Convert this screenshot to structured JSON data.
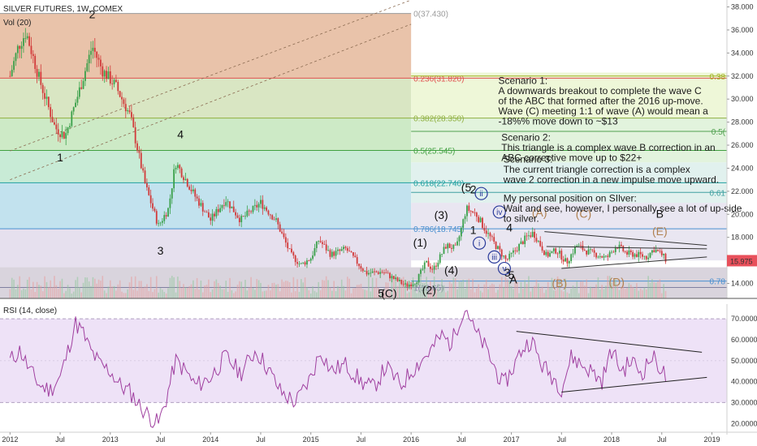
{
  "header": {
    "symbol": "SILVER FUTURES, 1W, COMEX",
    "vol_label": "Vol (20)",
    "rsi_label": "RSI (14, close)"
  },
  "colors": {
    "candle_up": "#3aa04a",
    "candle_down": "#d23a3a",
    "rsi_line": "#a040a0",
    "rsi_band": "#eee2f7",
    "price_badge": "#e8505b"
  },
  "chart_data": [
    {
      "type": "candlestick",
      "title": "SILVER FUTURES, 1W, COMEX",
      "x_ticks": [
        "2012",
        "Jul",
        "2013",
        "Jul",
        "2014",
        "Jul",
        "2015",
        "Jul",
        "2016",
        "Jul",
        "2017",
        "Jul",
        "2018",
        "Jul",
        "2019"
      ],
      "y_ticks": [
        "38.000",
        "36.000",
        "34.000",
        "32.000",
        "30.000",
        "28.000",
        "26.000",
        "24.000",
        "22.000",
        "20.000",
        "18.000",
        "16.000",
        "14.000"
      ],
      "ylim": [
        12.7,
        38.6
      ],
      "last_price": "15.975",
      "price_anchors": [
        {
          "t": 2012.0,
          "v": 32.0
        },
        {
          "t": 2012.08,
          "v": 34.5
        },
        {
          "t": 2012.16,
          "v": 35.8
        },
        {
          "t": 2012.3,
          "v": 31.5
        },
        {
          "t": 2012.45,
          "v": 27.5
        },
        {
          "t": 2012.55,
          "v": 26.8
        },
        {
          "t": 2012.7,
          "v": 31.0
        },
        {
          "t": 2012.82,
          "v": 34.6
        },
        {
          "t": 2012.92,
          "v": 32.5
        },
        {
          "t": 2013.05,
          "v": 31.2
        },
        {
          "t": 2013.2,
          "v": 28.5
        },
        {
          "t": 2013.35,
          "v": 22.5
        },
        {
          "t": 2013.48,
          "v": 19.0
        },
        {
          "t": 2013.58,
          "v": 20.5
        },
        {
          "t": 2013.65,
          "v": 24.5
        },
        {
          "t": 2013.72,
          "v": 23.5
        },
        {
          "t": 2013.85,
          "v": 21.5
        },
        {
          "t": 2014.0,
          "v": 19.5
        },
        {
          "t": 2014.15,
          "v": 21.3
        },
        {
          "t": 2014.3,
          "v": 19.5
        },
        {
          "t": 2014.5,
          "v": 21.0
        },
        {
          "t": 2014.65,
          "v": 19.5
        },
        {
          "t": 2014.8,
          "v": 16.5
        },
        {
          "t": 2014.9,
          "v": 15.6
        },
        {
          "t": 2015.0,
          "v": 16.2
        },
        {
          "t": 2015.08,
          "v": 17.8
        },
        {
          "t": 2015.2,
          "v": 16.5
        },
        {
          "t": 2015.35,
          "v": 17.0
        },
        {
          "t": 2015.55,
          "v": 14.9
        },
        {
          "t": 2015.72,
          "v": 15.0
        },
        {
          "t": 2015.85,
          "v": 14.3
        },
        {
          "t": 2015.95,
          "v": 13.8
        },
        {
          "t": 2016.05,
          "v": 14.2
        },
        {
          "t": 2016.15,
          "v": 15.8
        },
        {
          "t": 2016.22,
          "v": 15.2
        },
        {
          "t": 2016.35,
          "v": 17.3
        },
        {
          "t": 2016.45,
          "v": 17.0
        },
        {
          "t": 2016.55,
          "v": 20.5
        },
        {
          "t": 2016.65,
          "v": 20.0
        },
        {
          "t": 2016.75,
          "v": 18.5
        },
        {
          "t": 2016.85,
          "v": 17.2
        },
        {
          "t": 2016.95,
          "v": 16.0
        },
        {
          "t": 2017.05,
          "v": 17.0
        },
        {
          "t": 2017.15,
          "v": 18.0
        },
        {
          "t": 2017.22,
          "v": 18.4
        },
        {
          "t": 2017.35,
          "v": 16.4
        },
        {
          "t": 2017.45,
          "v": 16.9
        },
        {
          "t": 2017.55,
          "v": 15.8
        },
        {
          "t": 2017.65,
          "v": 17.3
        },
        {
          "t": 2017.75,
          "v": 16.8
        },
        {
          "t": 2017.85,
          "v": 16.5
        },
        {
          "t": 2017.95,
          "v": 16.2
        },
        {
          "t": 2018.05,
          "v": 17.3
        },
        {
          "t": 2018.15,
          "v": 16.6
        },
        {
          "t": 2018.25,
          "v": 16.5
        },
        {
          "t": 2018.35,
          "v": 16.3
        },
        {
          "t": 2018.42,
          "v": 17.0
        },
        {
          "t": 2018.5,
          "v": 16.5
        },
        {
          "t": 2018.55,
          "v": 15.97
        }
      ],
      "volume_baseline_note": "",
      "fib_levels": [
        {
          "ratio": "0",
          "price": 37.43,
          "label": "0(37.430)",
          "color": "#9a9a9a",
          "band": "#e9c3aa"
        },
        {
          "ratio": "0.236",
          "price": 31.82,
          "label": "0.236(31.820)",
          "color": "#e05050",
          "band": "#d9e6c3"
        },
        {
          "ratio": "0.382",
          "price": 28.35,
          "label": "0.382(28.350)",
          "color": "#90b040",
          "band": "#cdeac6"
        },
        {
          "ratio": "0.5",
          "price": 25.545,
          "label": "0.5(25.545)",
          "color": "#40a040",
          "band": "#c8ebd6"
        },
        {
          "ratio": "0.618",
          "price": 22.74,
          "label": "0.618(22.740)",
          "color": "#20a0a0",
          "band": "#c2e2ee"
        },
        {
          "ratio": "0.786",
          "price": 18.745,
          "label": "0.786(18.745)",
          "color": "#4a90d0",
          "band": "#e6e0ee"
        },
        {
          "ratio": "1",
          "price": 13.65,
          "label": "1(13.65)",
          "color": "#8080a0",
          "band": ""
        }
      ],
      "fib_right_labels": [
        {
          "text": "0.38",
          "price": 32.0,
          "color": "#a0b020"
        },
        {
          "text": "0.5(",
          "price": 27.2,
          "color": "#50a050"
        },
        {
          "text": "0.61",
          "price": 21.9,
          "color": "#40a0a0"
        },
        {
          "text": "0.78",
          "price": 14.2,
          "color": "#4a90d0"
        }
      ],
      "wave_labels_black": [
        {
          "text": "2",
          "t": 2012.82,
          "v": 37.0
        },
        {
          "text": "1",
          "t": 2012.5,
          "v": 24.6
        },
        {
          "text": "4",
          "t": 2013.7,
          "v": 26.6
        },
        {
          "text": "3",
          "t": 2013.5,
          "v": 16.5
        },
        {
          "text": "(1)",
          "t": 2016.09,
          "v": 17.2
        },
        {
          "text": "(2)",
          "t": 2016.18,
          "v": 13.1
        },
        {
          "text": "(3)",
          "t": 2016.3,
          "v": 19.6
        },
        {
          "text": "(4)",
          "t": 2016.4,
          "v": 14.8
        },
        {
          "text": "(5",
          "t": 2016.55,
          "v": 22.0
        },
        {
          "text": "2",
          "t": 2016.62,
          "v": 21.8
        },
        {
          "text": "1",
          "t": 2016.62,
          "v": 18.3
        },
        {
          "text": "4",
          "t": 2016.98,
          "v": 18.5
        },
        {
          "text": "3",
          "t": 2016.96,
          "v": 14.6
        },
        {
          "text": "5",
          "t": 2017.0,
          "v": 14.4
        },
        {
          "text": "A",
          "t": 2017.02,
          "v": 14.0
        },
        {
          "text": "B",
          "t": 2018.48,
          "v": 19.7
        },
        {
          "text": "5",
          "t": 2015.7,
          "v": 12.8
        }
      ],
      "wave_labels_brown": [
        {
          "text": "(A)",
          "t": 2017.28,
          "v": 19.8
        },
        {
          "text": "(C)",
          "t": 2017.72,
          "v": 19.7
        },
        {
          "text": "(E)",
          "t": 2018.48,
          "v": 18.2
        },
        {
          "text": "(B)",
          "t": 2017.48,
          "v": 13.7
        },
        {
          "text": "(D)",
          "t": 2018.05,
          "v": 13.8
        }
      ],
      "wave_labels_purple": [
        {
          "text": "(C)",
          "t": 2015.78,
          "v": 12.8
        }
      ],
      "circled_labels": [
        {
          "text": "ii",
          "t": 2016.7,
          "v": 21.8
        },
        {
          "text": "iv",
          "t": 2016.88,
          "v": 20.2
        },
        {
          "text": "i",
          "t": 2016.68,
          "v": 17.5
        },
        {
          "text": "iii",
          "t": 2016.83,
          "v": 16.3
        },
        {
          "text": "v",
          "t": 2016.93,
          "v": 15.3
        }
      ],
      "annotations": [
        {
          "id": "s1",
          "t": 2016.87,
          "v": 31.3,
          "lines": [
            "Scenario 1:",
            "A downwards breakout to complete the wave C",
            "of the ABC that formed after the 2016 up-move.",
            "Wave (C) meeting 1:1 of wave (A) would mean a",
            "-18%% move down to ~$13"
          ]
        },
        {
          "id": "s2",
          "t": 2016.9,
          "v": 26.4,
          "lines": [
            "Scenario 2:",
            "This triangle is a complex wave B correction in an",
            "ABC corrective move up to $22+"
          ]
        },
        {
          "id": "s3",
          "t": 2016.92,
          "v": 24.5,
          "lines": [
            "Scenario 3:",
            "The current triangle correction is a complex",
            "wave 2 correction in a new impulse move upward."
          ]
        },
        {
          "id": "s4",
          "t": 2016.92,
          "v": 21.1,
          "lines": [
            "My personal position on SIlver:",
            "Wait and see, however, I personally see a lot of up-side",
            "to silver."
          ]
        }
      ]
    },
    {
      "type": "line",
      "title": "RSI (14, close)",
      "y_ticks": [
        "70.0000",
        "60.0000",
        "50.0000",
        "40.0000",
        "30.0000",
        "20.0000"
      ],
      "ylim": [
        17,
        77
      ],
      "band": [
        30,
        70
      ],
      "rsi_anchors": [
        {
          "t": 2012.0,
          "v": 50
        },
        {
          "t": 2012.1,
          "v": 55
        },
        {
          "t": 2012.2,
          "v": 45
        },
        {
          "t": 2012.3,
          "v": 38
        },
        {
          "t": 2012.4,
          "v": 36
        },
        {
          "t": 2012.5,
          "v": 42
        },
        {
          "t": 2012.58,
          "v": 55
        },
        {
          "t": 2012.65,
          "v": 68
        },
        {
          "t": 2012.72,
          "v": 64
        },
        {
          "t": 2012.8,
          "v": 55
        },
        {
          "t": 2012.9,
          "v": 48
        },
        {
          "t": 2013.0,
          "v": 45
        },
        {
          "t": 2013.1,
          "v": 38
        },
        {
          "t": 2013.2,
          "v": 35
        },
        {
          "t": 2013.3,
          "v": 28
        },
        {
          "t": 2013.42,
          "v": 22
        },
        {
          "t": 2013.48,
          "v": 20
        },
        {
          "t": 2013.55,
          "v": 30
        },
        {
          "t": 2013.65,
          "v": 50
        },
        {
          "t": 2013.75,
          "v": 45
        },
        {
          "t": 2013.85,
          "v": 38
        },
        {
          "t": 2014.0,
          "v": 42
        },
        {
          "t": 2014.15,
          "v": 52
        },
        {
          "t": 2014.3,
          "v": 44
        },
        {
          "t": 2014.45,
          "v": 55
        },
        {
          "t": 2014.55,
          "v": 48
        },
        {
          "t": 2014.7,
          "v": 35
        },
        {
          "t": 2014.85,
          "v": 30
        },
        {
          "t": 2015.0,
          "v": 42
        },
        {
          "t": 2015.1,
          "v": 55
        },
        {
          "t": 2015.2,
          "v": 45
        },
        {
          "t": 2015.35,
          "v": 48
        },
        {
          "t": 2015.5,
          "v": 40
        },
        {
          "t": 2015.62,
          "v": 37
        },
        {
          "t": 2015.75,
          "v": 47
        },
        {
          "t": 2015.9,
          "v": 38
        },
        {
          "t": 2016.0,
          "v": 45
        },
        {
          "t": 2016.1,
          "v": 50
        },
        {
          "t": 2016.2,
          "v": 55
        },
        {
          "t": 2016.3,
          "v": 62
        },
        {
          "t": 2016.4,
          "v": 58
        },
        {
          "t": 2016.5,
          "v": 72
        },
        {
          "t": 2016.56,
          "v": 75
        },
        {
          "t": 2016.62,
          "v": 65
        },
        {
          "t": 2016.72,
          "v": 58
        },
        {
          "t": 2016.82,
          "v": 48
        },
        {
          "t": 2016.92,
          "v": 38
        },
        {
          "t": 2017.0,
          "v": 45
        },
        {
          "t": 2017.1,
          "v": 55
        },
        {
          "t": 2017.2,
          "v": 60
        },
        {
          "t": 2017.3,
          "v": 48
        },
        {
          "t": 2017.42,
          "v": 42
        },
        {
          "t": 2017.5,
          "v": 37
        },
        {
          "t": 2017.6,
          "v": 52
        },
        {
          "t": 2017.7,
          "v": 48
        },
        {
          "t": 2017.8,
          "v": 45
        },
        {
          "t": 2017.9,
          "v": 40
        },
        {
          "t": 2018.0,
          "v": 55
        },
        {
          "t": 2018.1,
          "v": 45
        },
        {
          "t": 2018.2,
          "v": 50
        },
        {
          "t": 2018.3,
          "v": 44
        },
        {
          "t": 2018.4,
          "v": 52
        },
        {
          "t": 2018.5,
          "v": 46
        },
        {
          "t": 2018.55,
          "v": 41
        }
      ],
      "trendlines": [
        {
          "t1": 2017.05,
          "v1": 64,
          "t2": 2018.9,
          "v2": 54
        },
        {
          "t1": 2017.5,
          "v1": 35,
          "t2": 2018.95,
          "v2": 42
        }
      ]
    }
  ]
}
